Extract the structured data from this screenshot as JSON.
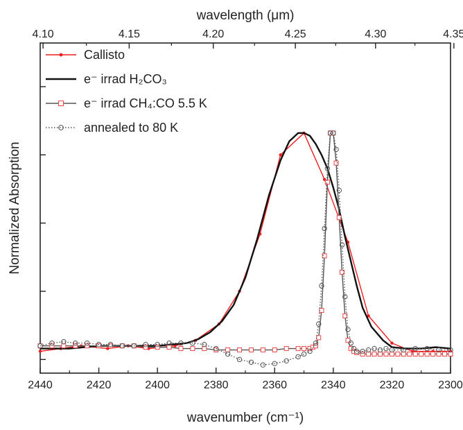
{
  "chart_data": {
    "type": "line",
    "title": "",
    "xlabel": "wavenumber (cm⁻¹)",
    "x2label": "wavelength (μm)",
    "ylabel": "Normalized Absorption",
    "xlim": [
      2440,
      2300
    ],
    "ylim": [
      -0.05,
      1.16
    ],
    "x_ticks": [
      2440,
      2420,
      2400,
      2380,
      2360,
      2340,
      2320,
      2300
    ],
    "x_tick_labels": [
      "2440",
      "2420",
      "2400",
      "2380",
      "2360",
      "2340",
      "2320",
      "2300"
    ],
    "x2_ticks": [
      4.1,
      4.15,
      4.2,
      4.25,
      4.3,
      4.35
    ],
    "x2_tick_labels": [
      "4.10",
      "4.15",
      "4.20",
      "4.25",
      "4.30",
      "4.35"
    ],
    "y_ticks": [
      0,
      0.25,
      0.5,
      0.75,
      1.0
    ],
    "y_tick_labels_shown": false,
    "grid": false,
    "legend_position": "top-left",
    "series": [
      {
        "name": "Callisto",
        "color": "#ee1c1c",
        "line_style": "solid",
        "marker": "dot",
        "x": [
          2440,
          2433,
          2426,
          2417,
          2410,
          2403,
          2394,
          2387,
          2379,
          2372,
          2365,
          2358,
          2350,
          2343,
          2335,
          2328,
          2320,
          2313,
          2306,
          2300
        ],
        "y": [
          0.03,
          0.04,
          0.05,
          0.04,
          0.05,
          0.04,
          0.05,
          0.07,
          0.13,
          0.25,
          0.46,
          0.75,
          0.83,
          0.66,
          0.43,
          0.16,
          0.06,
          0.03,
          0.03,
          0.03
        ]
      },
      {
        "name": "e⁻ irrad H₂CO₃",
        "color": "#111111",
        "line_style": "solid",
        "marker": "none",
        "x": [
          2440,
          2430,
          2420,
          2410,
          2400,
          2395,
          2390,
          2386,
          2382,
          2378,
          2374,
          2370,
          2366,
          2362,
          2358,
          2355,
          2352,
          2350,
          2348,
          2346,
          2344,
          2342,
          2340,
          2338,
          2336,
          2334,
          2332,
          2330,
          2327,
          2323,
          2320,
          2315,
          2310,
          2305,
          2300
        ],
        "y": [
          0.04,
          0.04,
          0.05,
          0.05,
          0.05,
          0.055,
          0.06,
          0.075,
          0.1,
          0.14,
          0.2,
          0.3,
          0.44,
          0.6,
          0.73,
          0.8,
          0.83,
          0.83,
          0.82,
          0.79,
          0.75,
          0.7,
          0.63,
          0.55,
          0.45,
          0.36,
          0.27,
          0.19,
          0.12,
          0.07,
          0.045,
          0.04,
          0.04,
          0.045,
          0.04
        ]
      },
      {
        "name": "e⁻ irrad CH₄:CO 5.5 K",
        "color": "#555555",
        "marker_color": "#ee4444",
        "line_style": "solid",
        "marker": "square",
        "x": [
          2440,
          2436,
          2432,
          2428,
          2424,
          2420,
          2416,
          2412,
          2408,
          2404,
          2400,
          2396,
          2392,
          2388,
          2384,
          2380,
          2376,
          2372,
          2368,
          2364,
          2360,
          2356,
          2352,
          2350,
          2348,
          2347,
          2346,
          2345,
          2344,
          2343,
          2342,
          2341,
          2340,
          2339,
          2338,
          2337,
          2336,
          2335,
          2334,
          2333,
          2332,
          2330,
          2328,
          2326,
          2324,
          2322,
          2320,
          2318,
          2316,
          2314,
          2312,
          2310,
          2308,
          2306,
          2304,
          2302,
          2300
        ],
        "y": [
          0.05,
          0.05,
          0.05,
          0.05,
          0.05,
          0.05,
          0.05,
          0.05,
          0.05,
          0.045,
          0.045,
          0.045,
          0.04,
          0.04,
          0.04,
          0.035,
          0.035,
          0.035,
          0.035,
          0.035,
          0.035,
          0.04,
          0.04,
          0.04,
          0.04,
          0.045,
          0.05,
          0.08,
          0.18,
          0.38,
          0.65,
          0.83,
          0.83,
          0.72,
          0.52,
          0.32,
          0.16,
          0.07,
          0.04,
          0.03,
          0.025,
          0.02,
          0.02,
          0.02,
          0.02,
          0.02,
          0.02,
          0.02,
          0.02,
          0.02,
          0.02,
          0.02,
          0.02,
          0.02,
          0.02,
          0.02,
          0.02
        ]
      },
      {
        "name": "annealed to 80 K",
        "color": "#555555",
        "line_style": "dotted",
        "marker": "circle",
        "x": [
          2440,
          2436,
          2432,
          2428,
          2424,
          2420,
          2416,
          2412,
          2408,
          2404,
          2400,
          2396,
          2392,
          2388,
          2384,
          2380,
          2376,
          2372,
          2368,
          2364,
          2360,
          2356,
          2352,
          2350,
          2348,
          2346,
          2345,
          2344,
          2343,
          2342,
          2341,
          2340,
          2339,
          2338,
          2337,
          2336,
          2335,
          2334,
          2333,
          2332,
          2330,
          2328,
          2326,
          2324,
          2322,
          2320,
          2316,
          2312,
          2308,
          2304,
          2300
        ],
        "y": [
          0.05,
          0.06,
          0.065,
          0.06,
          0.06,
          0.055,
          0.055,
          0.05,
          0.05,
          0.055,
          0.055,
          0.06,
          0.06,
          0.06,
          0.055,
          0.04,
          0.02,
          0.0,
          -0.01,
          -0.02,
          -0.015,
          -0.005,
          0.01,
          0.02,
          0.03,
          0.06,
          0.13,
          0.27,
          0.48,
          0.7,
          0.83,
          0.83,
          0.77,
          0.62,
          0.42,
          0.23,
          0.11,
          0.06,
          0.04,
          0.03,
          0.03,
          0.035,
          0.04,
          0.035,
          0.04,
          0.035,
          0.035,
          0.04,
          0.04,
          0.035,
          0.035
        ]
      }
    ]
  }
}
